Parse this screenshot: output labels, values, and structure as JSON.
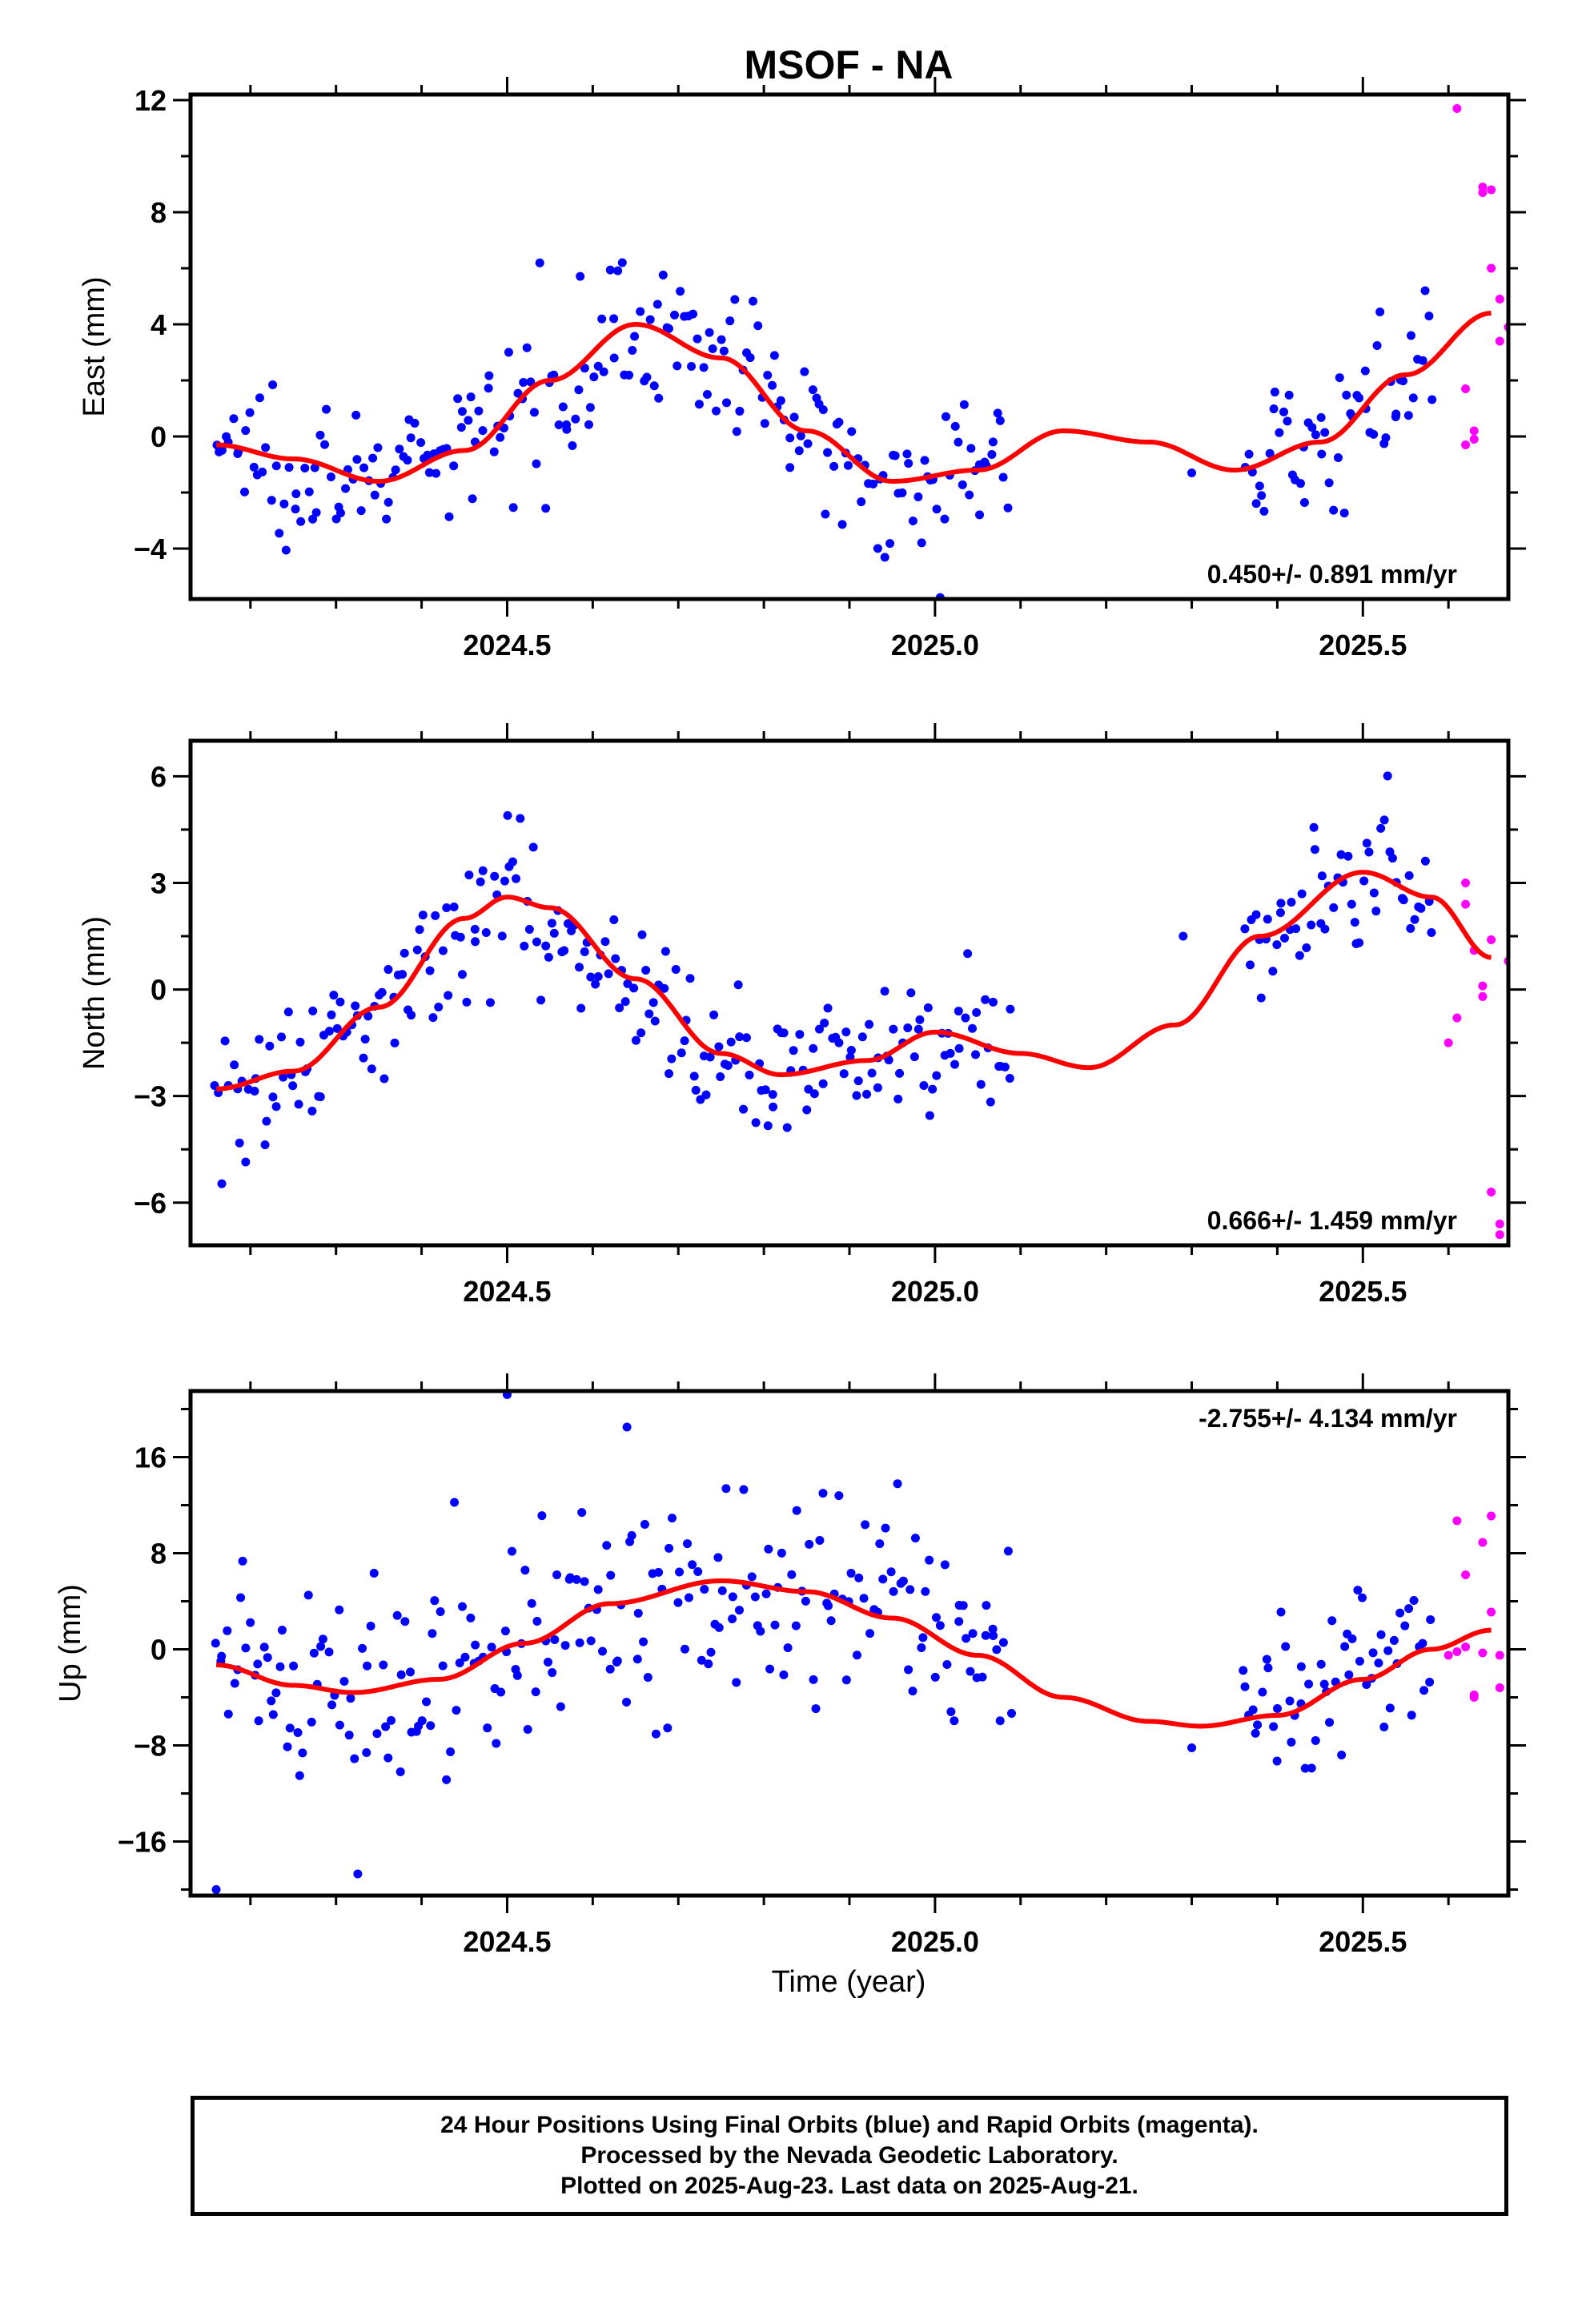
{
  "page": {
    "title": "MSOF - NA",
    "xlabel": "Time (year)"
  },
  "footer": {
    "line1": "24 Hour Positions Using Final Orbits (blue) and Rapid Orbits (magenta).",
    "line2": "Processed by the Nevada Geodetic Laboratory.",
    "line3": "Plotted on 2025-Aug-23. Last data on 2025-Aug-21."
  },
  "colors": {
    "final": "#0000ff",
    "rapid": "#ff00ff",
    "fit": "#ff0000",
    "axis": "#000000"
  },
  "chart_data": [
    {
      "type": "scatter",
      "name": "east",
      "ylabel": "East (mm)",
      "rate": "0.450+/- 0.891 mm/yr",
      "rate_placement": "bottom-right",
      "xlim": [
        2024.13,
        2025.67
      ],
      "ylim": [
        -5.8,
        12.2
      ],
      "xticks": [
        2024.5,
        2025.0,
        2025.5
      ],
      "xtick_labels": [
        "2024.5",
        "2025.0",
        "2025.5"
      ],
      "yticks": [
        -4,
        0,
        4,
        8,
        12
      ],
      "ytick_labels": [
        "−4",
        "0",
        "4",
        "8",
        "12"
      ],
      "fit": {
        "a": 0.5,
        "b": 0.0,
        "c": 2.25,
        "d": 1.8,
        "phase": 1.25,
        "e": 0.45,
        "amp2": 0.55,
        "phase2": 0.9
      },
      "fit_samples": [
        [
          2024.16,
          -0.3
        ],
        [
          2024.25,
          -0.8
        ],
        [
          2024.35,
          -1.6
        ],
        [
          2024.45,
          -0.5
        ],
        [
          2024.55,
          2.0
        ],
        [
          2024.65,
          4.0
        ],
        [
          2024.75,
          2.8
        ],
        [
          2024.85,
          0.2
        ],
        [
          2024.95,
          -1.6
        ],
        [
          2025.05,
          -1.2
        ],
        [
          2025.15,
          0.2
        ],
        [
          2025.25,
          -0.2
        ],
        [
          2025.35,
          -1.2
        ],
        [
          2025.45,
          -0.2
        ],
        [
          2025.55,
          2.2
        ],
        [
          2025.65,
          4.4
        ]
      ],
      "final_range": [
        2024.16,
        2025.58
      ],
      "final_gap": [
        2025.09,
        2025.36
      ],
      "final_extra": [
        [
          2025.3,
          -1.3
        ]
      ],
      "final_noise": 1.3,
      "final_count": 360,
      "rapid": [
        [
          2025.61,
          11.7
        ],
        [
          2025.62,
          1.7
        ],
        [
          2025.62,
          -0.3
        ],
        [
          2025.63,
          0.2
        ],
        [
          2025.63,
          -0.1
        ],
        [
          2025.64,
          8.9
        ],
        [
          2025.64,
          8.7
        ],
        [
          2025.65,
          8.8
        ],
        [
          2025.65,
          6.0
        ],
        [
          2025.66,
          4.9
        ],
        [
          2025.66,
          3.4
        ],
        [
          2025.67,
          3.9
        ]
      ]
    },
    {
      "type": "scatter",
      "name": "north",
      "ylabel": "North (mm)",
      "rate": "0.666+/- 1.459 mm/yr",
      "rate_placement": "bottom-right",
      "xlim": [
        2024.13,
        2025.67
      ],
      "ylim": [
        -7.2,
        7.0
      ],
      "xticks": [
        2024.5,
        2025.0,
        2025.5
      ],
      "xtick_labels": [
        "2024.5",
        "2025.0",
        "2025.5"
      ],
      "yticks": [
        -6,
        -3,
        0,
        3,
        6
      ],
      "ytick_labels": [
        "−6",
        "−3",
        "0",
        "3",
        "6"
      ],
      "fit_samples": [
        [
          2024.16,
          -2.8
        ],
        [
          2024.25,
          -2.3
        ],
        [
          2024.35,
          -0.5
        ],
        [
          2024.45,
          2.0
        ],
        [
          2024.5,
          2.6
        ],
        [
          2024.55,
          2.3
        ],
        [
          2024.65,
          0.3
        ],
        [
          2024.75,
          -1.8
        ],
        [
          2024.82,
          -2.4
        ],
        [
          2024.92,
          -2.0
        ],
        [
          2025.0,
          -1.2
        ],
        [
          2025.1,
          -1.8
        ],
        [
          2025.18,
          -2.2
        ],
        [
          2025.28,
          -1.0
        ],
        [
          2025.38,
          1.5
        ],
        [
          2025.5,
          3.3
        ],
        [
          2025.58,
          2.6
        ],
        [
          2025.65,
          0.9
        ]
      ],
      "final_range": [
        2024.16,
        2025.58
      ],
      "final_gap": [
        2025.09,
        2025.36
      ],
      "final_extra": [
        [
          2025.29,
          1.5
        ]
      ],
      "final_noise": 1.0,
      "final_count": 360,
      "rapid": [
        [
          2025.6,
          -1.5
        ],
        [
          2025.61,
          -0.8
        ],
        [
          2025.62,
          3.0
        ],
        [
          2025.62,
          2.4
        ],
        [
          2025.63,
          1.1
        ],
        [
          2025.64,
          0.1
        ],
        [
          2025.64,
          -0.2
        ],
        [
          2025.65,
          1.4
        ],
        [
          2025.65,
          -5.7
        ],
        [
          2025.66,
          -6.6
        ],
        [
          2025.66,
          -6.9
        ],
        [
          2025.67,
          0.8
        ]
      ]
    },
    {
      "type": "scatter",
      "name": "up",
      "ylabel": "Up (mm)",
      "rate": "-2.755+/- 4.134 mm/yr",
      "rate_placement": "top-right",
      "xlim": [
        2024.13,
        2025.67
      ],
      "ylim": [
        -20.5,
        21.5
      ],
      "xticks": [
        2024.5,
        2025.0,
        2025.5
      ],
      "xtick_labels": [
        "2024.5",
        "2025.0",
        "2025.5"
      ],
      "yticks": [
        -16,
        -8,
        0,
        8,
        16
      ],
      "ytick_labels": [
        "−16",
        "−8",
        "0",
        "8",
        "16"
      ],
      "fit_samples": [
        [
          2024.16,
          -1.3
        ],
        [
          2024.25,
          -3.0
        ],
        [
          2024.32,
          -3.6
        ],
        [
          2024.42,
          -2.5
        ],
        [
          2024.52,
          0.5
        ],
        [
          2024.62,
          3.8
        ],
        [
          2024.75,
          5.7
        ],
        [
          2024.85,
          4.8
        ],
        [
          2024.95,
          2.6
        ],
        [
          2025.05,
          -0.5
        ],
        [
          2025.15,
          -4.0
        ],
        [
          2025.25,
          -6.0
        ],
        [
          2025.31,
          -6.4
        ],
        [
          2025.4,
          -5.5
        ],
        [
          2025.5,
          -2.5
        ],
        [
          2025.58,
          0.0
        ],
        [
          2025.65,
          1.6
        ]
      ],
      "final_range": [
        2024.16,
        2025.58
      ],
      "final_gap": [
        2025.09,
        2025.36
      ],
      "final_extra": [
        [
          2025.3,
          -8.2
        ],
        [
          2024.16,
          -20.0
        ],
        [
          2024.5,
          21.2
        ],
        [
          2024.64,
          18.5
        ]
      ],
      "final_noise": 4.2,
      "final_count": 360,
      "rapid": [
        [
          2025.6,
          -0.5
        ],
        [
          2025.61,
          -0.2
        ],
        [
          2025.61,
          10.7
        ],
        [
          2025.62,
          6.2
        ],
        [
          2025.62,
          0.2
        ],
        [
          2025.63,
          -4.0
        ],
        [
          2025.63,
          -3.8
        ],
        [
          2025.64,
          8.9
        ],
        [
          2025.64,
          -0.3
        ],
        [
          2025.65,
          3.1
        ],
        [
          2025.65,
          11.1
        ],
        [
          2025.66,
          -3.2
        ],
        [
          2025.66,
          -0.5
        ]
      ]
    }
  ]
}
